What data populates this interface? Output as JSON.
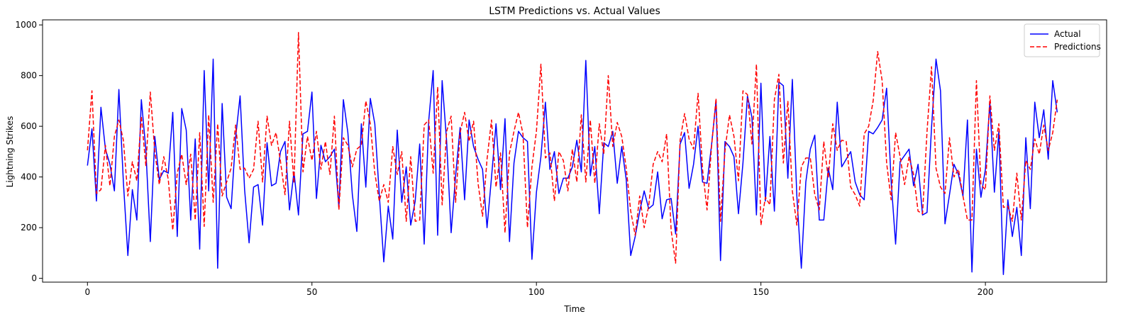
{
  "chart_data": {
    "type": "line",
    "title": "LSTM Predictions vs. Actual Values",
    "xlabel": "Time",
    "ylabel": "Lightning Strikes",
    "xlim": [
      -10,
      227
    ],
    "ylim": [
      -15,
      1020
    ],
    "xticks": [
      0,
      50,
      100,
      150,
      200
    ],
    "yticks": [
      0,
      200,
      400,
      600,
      800,
      1000
    ],
    "grid": false,
    "legend_position": "top-right",
    "series": [
      {
        "name": "Actual",
        "color": "#0000ff",
        "style": "solid",
        "values": [
          445,
          590,
          305,
          675,
          510,
          450,
          345,
          745,
          380,
          90,
          350,
          230,
          705,
          510,
          145,
          560,
          390,
          425,
          415,
          655,
          165,
          670,
          585,
          230,
          550,
          115,
          820,
          345,
          865,
          40,
          690,
          320,
          275,
          555,
          720,
          350,
          140,
          360,
          370,
          210,
          535,
          365,
          375,
          500,
          540,
          270,
          420,
          250,
          570,
          580,
          735,
          315,
          525,
          460,
          480,
          510,
          280,
          705,
          575,
          330,
          185,
          610,
          360,
          710,
          610,
          330,
          65,
          285,
          155,
          585,
          300,
          440,
          210,
          305,
          530,
          135,
          620,
          820,
          170,
          780,
          540,
          180,
          405,
          595,
          310,
          625,
          520,
          470,
          430,
          200,
          400,
          610,
          350,
          630,
          145,
          455,
          580,
          555,
          540,
          75,
          340,
          480,
          695,
          430,
          500,
          335,
          395,
          395,
          440,
          545,
          420,
          860,
          405,
          520,
          255,
          535,
          520,
          580,
          375,
          520,
          390,
          90,
          165,
          265,
          345,
          275,
          290,
          420,
          235,
          310,
          315,
          175,
          530,
          575,
          355,
          450,
          600,
          380,
          375,
          525,
          700,
          70,
          540,
          520,
          480,
          255,
          455,
          720,
          635,
          250,
          770,
          305,
          560,
          265,
          775,
          760,
          395,
          785,
          325,
          40,
          380,
          510,
          565,
          230,
          230,
          435,
          350,
          695,
          440,
          470,
          500,
          380,
          330,
          310,
          580,
          570,
          595,
          625,
          750,
          385,
          135,
          460,
          485,
          510,
          365,
          450,
          250,
          260,
          595,
          865,
          740,
          215,
          330,
          450,
          410,
          325,
          625,
          25,
          510,
          320,
          430,
          695,
          340,
          580,
          15,
          310,
          165,
          280,
          90,
          555,
          275,
          695,
          555,
          665,
          470,
          780,
          655
        ]
      },
      {
        "name": "Predictions",
        "color": "#ff0000",
        "style": "dashed",
        "values": [
          505,
          740,
          335,
          350,
          525,
          365,
          560,
          625,
          545,
          325,
          460,
          385,
          640,
          445,
          735,
          500,
          370,
          480,
          390,
          190,
          415,
          490,
          370,
          490,
          230,
          575,
          205,
          645,
          300,
          610,
          325,
          380,
          435,
          605,
          430,
          435,
          395,
          430,
          620,
          380,
          640,
          525,
          575,
          460,
          330,
          620,
          375,
          970,
          420,
          560,
          465,
          580,
          430,
          540,
          410,
          640,
          270,
          555,
          525,
          440,
          510,
          525,
          700,
          610,
          415,
          305,
          370,
          300,
          520,
          410,
          500,
          225,
          480,
          225,
          230,
          605,
          625,
          415,
          755,
          290,
          580,
          640,
          300,
          575,
          655,
          540,
          620,
          375,
          245,
          470,
          625,
          360,
          495,
          180,
          495,
          580,
          655,
          570,
          200,
          440,
          580,
          845,
          475,
          495,
          305,
          500,
          465,
          345,
          510,
          380,
          645,
          380,
          625,
          375,
          610,
          490,
          800,
          520,
          615,
          560,
          435,
          265,
          170,
          325,
          200,
          285,
          450,
          500,
          460,
          570,
          190,
          60,
          545,
          650,
          550,
          510,
          730,
          430,
          270,
          520,
          710,
          225,
          505,
          645,
          560,
          385,
          740,
          725,
          530,
          845,
          210,
          320,
          290,
          705,
          805,
          455,
          700,
          345,
          210,
          440,
          475,
          475,
          330,
          270,
          540,
          395,
          610,
          505,
          545,
          540,
          360,
          330,
          285,
          570,
          600,
          700,
          895,
          780,
          455,
          310,
          575,
          480,
          370,
          480,
          410,
          265,
          255,
          580,
          835,
          435,
          360,
          335,
          555,
          400,
          430,
          325,
          230,
          230,
          780,
          370,
          350,
          720,
          505,
          610,
          280,
          285,
          225,
          415,
          230,
          465,
          430,
          550,
          490,
          605,
          505,
          575,
          705
        ]
      }
    ]
  }
}
